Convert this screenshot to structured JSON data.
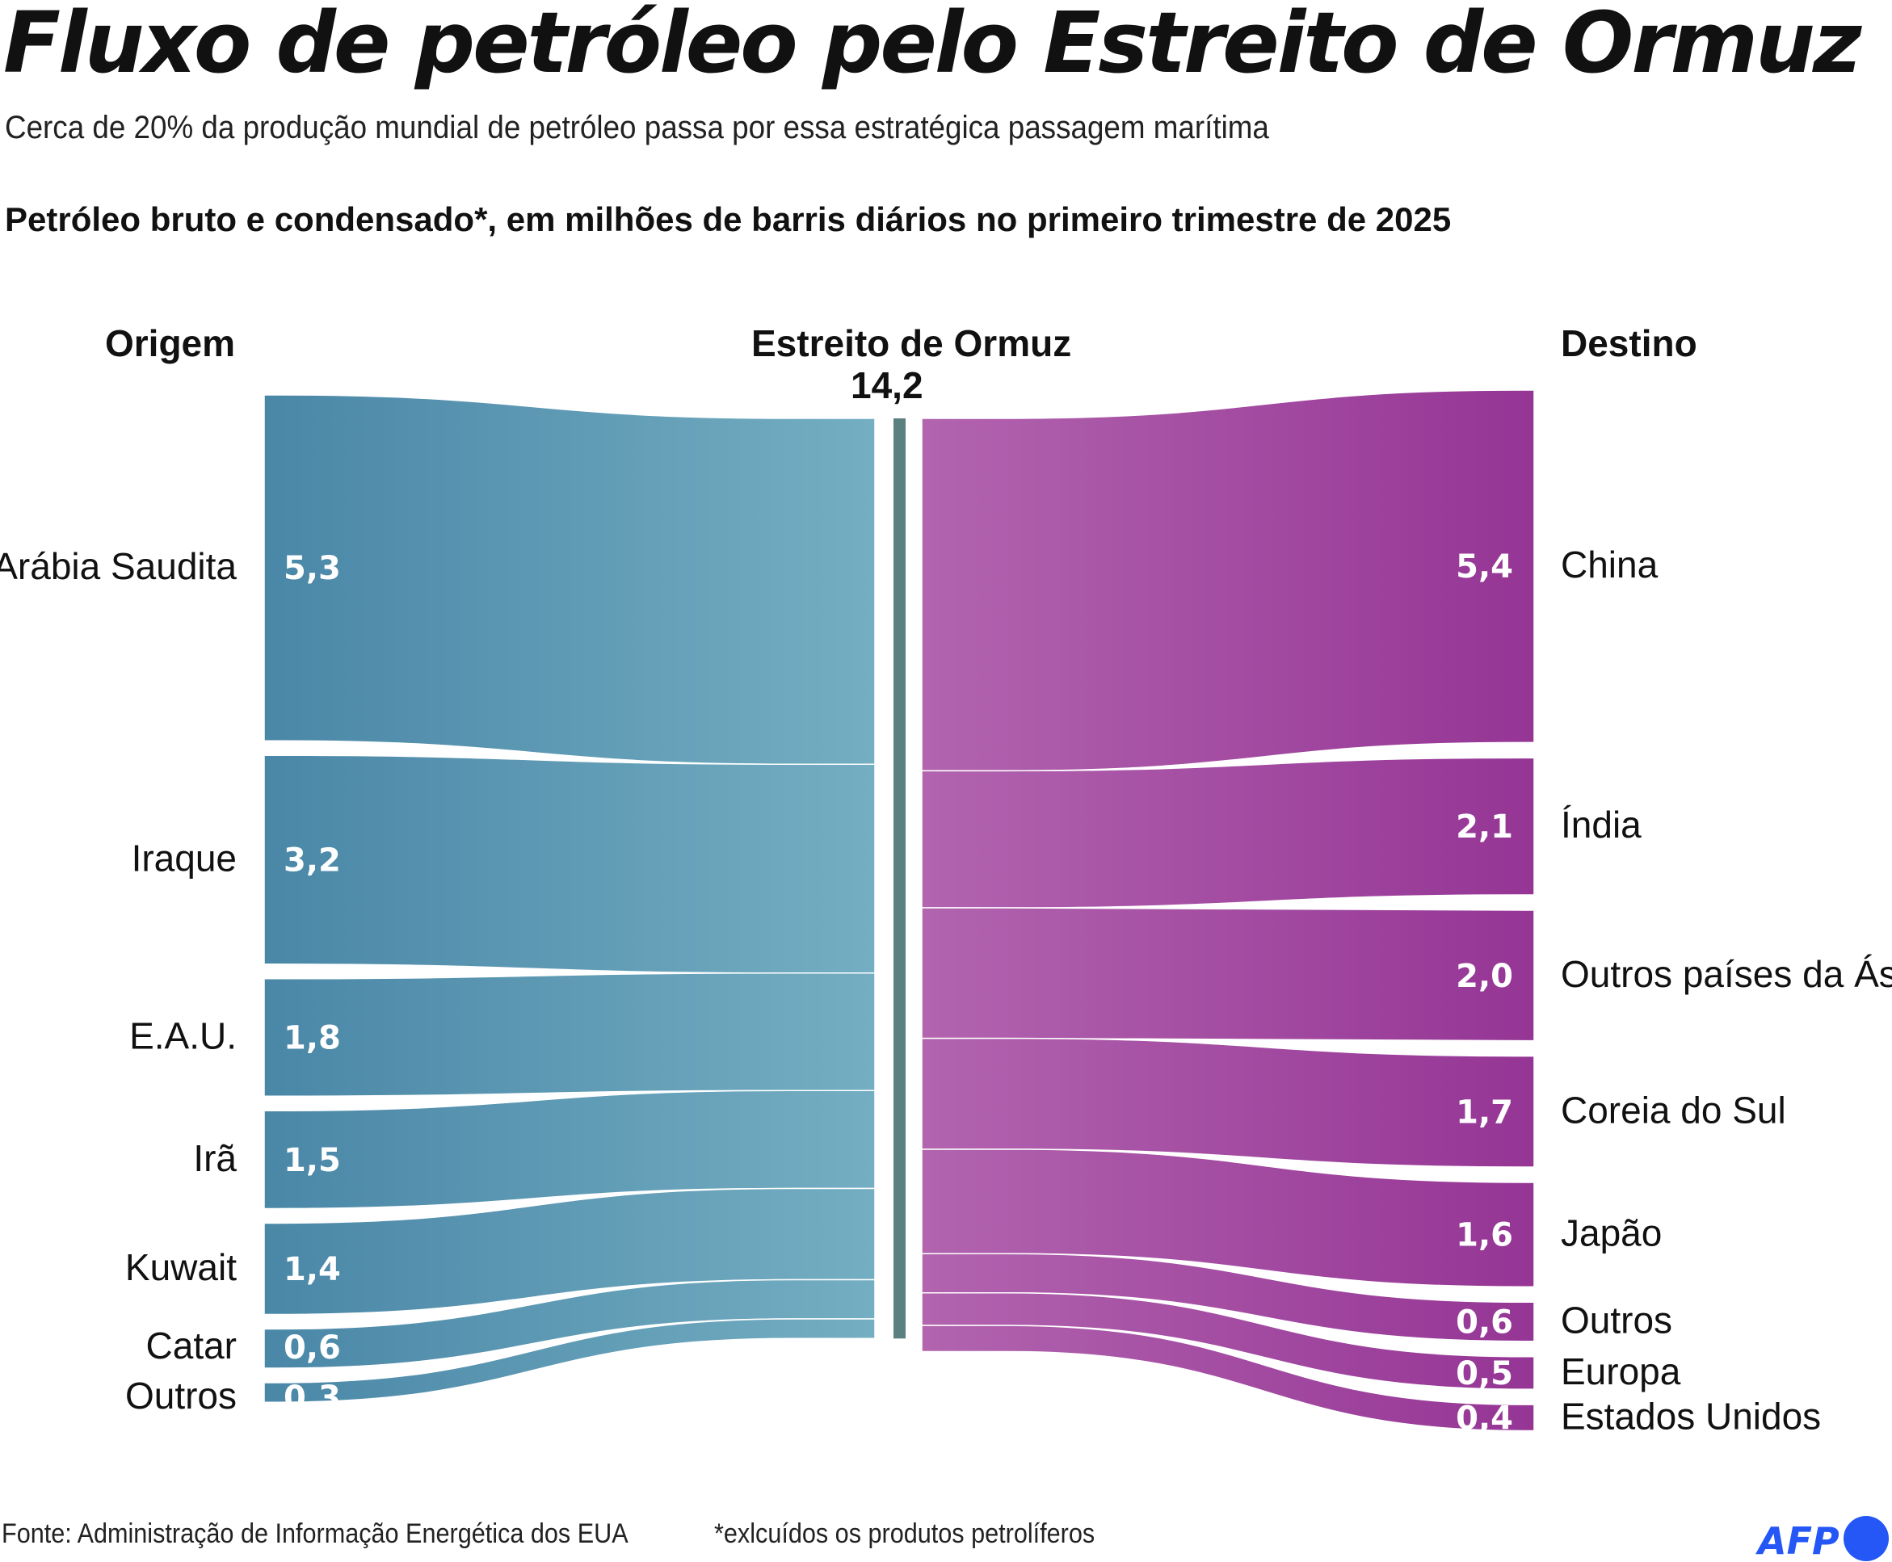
{
  "title": "Fluxo de petróleo pelo Estreito de Ormuz",
  "subtitle": "Cerca de 20% da produção mundial de petróleo passa por essa estratégica passagem marítima",
  "subheading": "Petróleo bruto e condensado*, em milhões de barris diários no primeiro trimestre de 2025",
  "footer": {
    "source": "Fonte: Administração de Informação Energética dos EUA",
    "note": "*exlcuídos os produtos petrolíferos",
    "logo": "AFP"
  },
  "colors": {
    "origin_start": "#4a87a7",
    "origin_end": "#74aec2",
    "strait": "#5a8080",
    "destination_start": "#b264af",
    "destination_end": "#953595",
    "logo": "#2457f5"
  },
  "chart_data": {
    "type": "sankey",
    "units": "milhões de barris diários",
    "origin_header": "Origem",
    "center_header": "Estreito de Ormuz",
    "center_value": "14,2",
    "destination_header": "Destino",
    "origins": [
      {
        "name": "Arábia Saudita",
        "value": 5.3,
        "label": "5,3"
      },
      {
        "name": "Iraque",
        "value": 3.2,
        "label": "3,2"
      },
      {
        "name": "E.A.U.",
        "value": 1.8,
        "label": "1,8"
      },
      {
        "name": "Irã",
        "value": 1.5,
        "label": "1,5"
      },
      {
        "name": "Kuwait",
        "value": 1.4,
        "label": "1,4"
      },
      {
        "name": "Catar",
        "value": 0.6,
        "label": "0,6"
      },
      {
        "name": "Outros",
        "value": 0.3,
        "label": "0,3"
      }
    ],
    "destinations": [
      {
        "name": "China",
        "value": 5.4,
        "label": "5,4"
      },
      {
        "name": "Índia",
        "value": 2.1,
        "label": "2,1"
      },
      {
        "name": "Outros países da Ásia",
        "value": 2.0,
        "label": "2,0"
      },
      {
        "name": "Coreia do Sul",
        "value": 1.7,
        "label": "1,7"
      },
      {
        "name": "Japão",
        "value": 1.6,
        "label": "1,6"
      },
      {
        "name": "Outros",
        "value": 0.6,
        "label": "0,6"
      },
      {
        "name": "Europa",
        "value": 0.5,
        "label": "0,5"
      },
      {
        "name": "Estados Unidos",
        "value": 0.4,
        "label": "0,4"
      }
    ]
  }
}
